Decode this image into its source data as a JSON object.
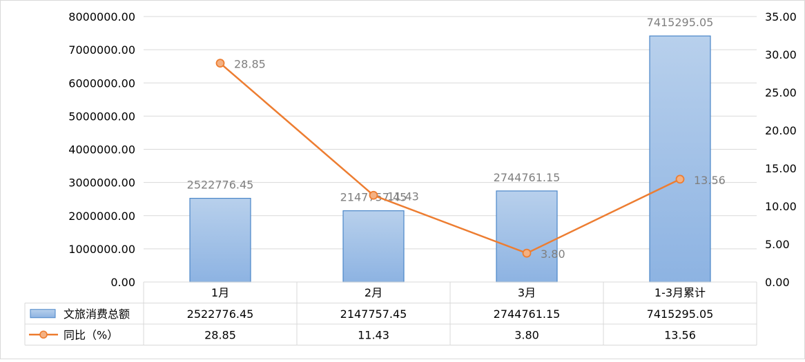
{
  "chart_data": {
    "type": "bar",
    "categories": [
      "1月",
      "2月",
      "3月",
      "1-3月累计"
    ],
    "series": [
      {
        "name": "文旅消费总额",
        "type": "bar",
        "axis": "left",
        "values": [
          2522776.45,
          2147757.45,
          2744761.15,
          7415295.05
        ],
        "labels": [
          "2522776.45",
          "2147757.45",
          "2744761.15",
          "7415295.05"
        ]
      },
      {
        "name": "同比（%）",
        "type": "line",
        "axis": "right",
        "values": [
          28.85,
          11.43,
          3.8,
          13.56
        ],
        "labels": [
          "28.85",
          "11.43",
          "3.80",
          "13.56"
        ]
      }
    ],
    "y_left": {
      "ylim": [
        0,
        8000000
      ],
      "ticks": [
        "0.00",
        "1000000.00",
        "2000000.00",
        "3000000.00",
        "4000000.00",
        "5000000.00",
        "6000000.00",
        "7000000.00",
        "8000000.00"
      ]
    },
    "y_right": {
      "ylim": [
        0,
        35
      ],
      "ticks": [
        "0.00",
        "5.00",
        "10.00",
        "15.00",
        "20.00",
        "25.00",
        "30.00",
        "35.00"
      ]
    },
    "grid": true,
    "legend": "data-table-bottom",
    "colors": {
      "bar_fill_top": "#b4cdea",
      "bar_fill_bottom": "#8db3e2",
      "bar_stroke": "#4a86c8",
      "line": "#ed7d31",
      "marker_fill": "#f4b183",
      "grid": "#d9d9d9",
      "text": "#000000",
      "label": "#7f7f7f"
    }
  }
}
